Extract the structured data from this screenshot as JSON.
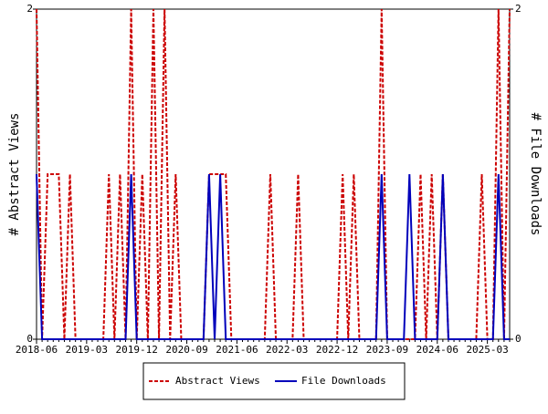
{
  "chart_data": {
    "type": "line",
    "categories": [
      "2018-06",
      null,
      null,
      null,
      null,
      null,
      null,
      null,
      null,
      "2019-03",
      null,
      null,
      null,
      null,
      null,
      null,
      null,
      null,
      "2019-12",
      null,
      null,
      null,
      null,
      null,
      null,
      null,
      null,
      "2020-09",
      null,
      null,
      null,
      null,
      null,
      null,
      null,
      null,
      "2021-06",
      null,
      null,
      null,
      null,
      null,
      null,
      null,
      null,
      "2022-03",
      null,
      null,
      null,
      null,
      null,
      null,
      null,
      null,
      "2022-12",
      null,
      null,
      null,
      null,
      null,
      null,
      null,
      null,
      "2023-09",
      null,
      null,
      null,
      null,
      null,
      null,
      null,
      null,
      "2024-06",
      null,
      null,
      null,
      null,
      null,
      null,
      null,
      null,
      "2025-03",
      null,
      null,
      null,
      null
    ],
    "ylabel": "# Abstract Views",
    "y2label": "# File Downloads",
    "ylim": [
      0,
      2
    ],
    "yticks": [
      0,
      2
    ],
    "y2lim": [
      0,
      2
    ],
    "y2ticks": [
      0,
      2
    ],
    "series": [
      {
        "name": "Abstract Views",
        "color": "#cc0000",
        "dashed": true,
        "values": [
          2,
          0,
          1,
          1,
          1,
          0,
          1,
          0,
          0,
          0,
          0,
          0,
          0,
          1,
          0,
          1,
          0,
          2,
          0,
          1,
          0,
          2,
          0,
          2,
          0,
          1,
          0,
          0,
          0,
          0,
          0,
          1,
          1,
          1,
          1,
          0,
          0,
          0,
          0,
          0,
          0,
          0,
          1,
          0,
          0,
          0,
          0,
          1,
          0,
          0,
          0,
          0,
          0,
          0,
          0,
          1,
          0,
          1,
          0,
          0,
          0,
          0,
          2,
          0,
          0,
          0,
          0,
          0,
          0,
          1,
          0,
          1,
          0,
          1,
          0,
          0,
          0,
          0,
          0,
          0,
          1,
          0,
          0,
          2,
          0,
          2
        ]
      },
      {
        "name": "File Downloads",
        "color": "#0000bb",
        "dashed": false,
        "axis": "y2",
        "values": [
          1,
          0,
          0,
          0,
          0,
          0,
          0,
          0,
          0,
          0,
          0,
          0,
          0,
          0,
          0,
          0,
          0,
          1,
          0,
          0,
          0,
          0,
          0,
          0,
          0,
          0,
          0,
          0,
          0,
          0,
          0,
          1,
          0,
          1,
          0,
          0,
          0,
          0,
          0,
          0,
          0,
          0,
          0,
          0,
          0,
          0,
          0,
          0,
          0,
          0,
          0,
          0,
          0,
          0,
          0,
          0,
          0,
          0,
          0,
          0,
          0,
          0,
          1,
          0,
          0,
          0,
          0,
          1,
          0,
          0,
          0,
          0,
          0,
          1,
          0,
          0,
          0,
          0,
          0,
          0,
          0,
          0,
          0,
          1,
          0,
          0
        ]
      }
    ]
  }
}
